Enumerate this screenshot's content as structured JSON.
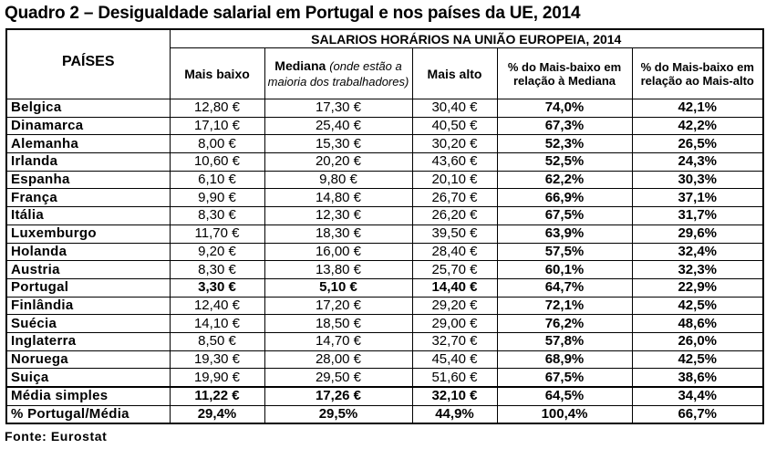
{
  "title": "Quadro 2 – Desigualdade salarial em Portugal e nos países da UE, 2014",
  "table": {
    "group_header": "SALARIOS HORÁRIOS NA UNIÃO EUROPEIA, 2014",
    "col_paises": "PAÍSES",
    "col_baixo": "Mais baixo",
    "col_mediana": "Mediana",
    "col_mediana_note": "(onde estão a maioria dos trabalhadores)",
    "col_alto": "Mais alto",
    "col_pct_mediana": "% do Mais-baixo em relação à Mediana",
    "col_pct_alto": "% do Mais-baixo em relação ao Mais-alto",
    "rows": [
      {
        "pais": "Belgica",
        "baixo": "12,80 €",
        "mediana": "17,30 €",
        "alto": "30,40 €",
        "pct_med": "74,0%",
        "pct_alto": "42,1%"
      },
      {
        "pais": "Dinamarca",
        "baixo": "17,10 €",
        "mediana": "25,40 €",
        "alto": "40,50 €",
        "pct_med": "67,3%",
        "pct_alto": "42,2%"
      },
      {
        "pais": "Alemanha",
        "baixo": "8,00 €",
        "mediana": "15,30 €",
        "alto": "30,20 €",
        "pct_med": "52,3%",
        "pct_alto": "26,5%"
      },
      {
        "pais": "Irlanda",
        "baixo": "10,60 €",
        "mediana": "20,20 €",
        "alto": "43,60 €",
        "pct_med": "52,5%",
        "pct_alto": "24,3%"
      },
      {
        "pais": "Espanha",
        "baixo": "6,10 €",
        "mediana": "9,80 €",
        "alto": "20,10 €",
        "pct_med": "62,2%",
        "pct_alto": "30,3%"
      },
      {
        "pais": "França",
        "baixo": "9,90 €",
        "mediana": "14,80 €",
        "alto": "26,70 €",
        "pct_med": "66,9%",
        "pct_alto": "37,1%"
      },
      {
        "pais": "Itália",
        "baixo": "8,30 €",
        "mediana": "12,30 €",
        "alto": "26,20 €",
        "pct_med": "67,5%",
        "pct_alto": "31,7%"
      },
      {
        "pais": "Luxemburgo",
        "baixo": "11,70 €",
        "mediana": "18,30 €",
        "alto": "39,50 €",
        "pct_med": "63,9%",
        "pct_alto": "29,6%"
      },
      {
        "pais": "Holanda",
        "baixo": "9,20 €",
        "mediana": "16,00 €",
        "alto": "28,40 €",
        "pct_med": "57,5%",
        "pct_alto": "32,4%"
      },
      {
        "pais": "Austria",
        "baixo": "8,30 €",
        "mediana": "13,80 €",
        "alto": "25,70 €",
        "pct_med": "60,1%",
        "pct_alto": "32,3%"
      },
      {
        "pais": "Portugal",
        "baixo": "3,30 €",
        "mediana": "5,10 €",
        "alto": "14,40 €",
        "pct_med": "64,7%",
        "pct_alto": "22,9%",
        "bold": true
      },
      {
        "pais": "Finlândia",
        "baixo": "12,40 €",
        "mediana": "17,20 €",
        "alto": "29,20 €",
        "pct_med": "72,1%",
        "pct_alto": "42,5%"
      },
      {
        "pais": "Suécia",
        "baixo": "14,10 €",
        "mediana": "18,50 €",
        "alto": "29,00 €",
        "pct_med": "76,2%",
        "pct_alto": "48,6%"
      },
      {
        "pais": "Inglaterra",
        "baixo": "8,50 €",
        "mediana": "14,70 €",
        "alto": "32,70 €",
        "pct_med": "57,8%",
        "pct_alto": "26,0%"
      },
      {
        "pais": "Noruega",
        "baixo": "19,30 €",
        "mediana": "28,00 €",
        "alto": "45,40 €",
        "pct_med": "68,9%",
        "pct_alto": "42,5%"
      },
      {
        "pais": "Suiça",
        "baixo": "19,90 €",
        "mediana": "29,50 €",
        "alto": "51,60 €",
        "pct_med": "67,5%",
        "pct_alto": "38,6%"
      },
      {
        "pais": "Média simples",
        "baixo": "11,22 €",
        "mediana": "17,26 €",
        "alto": "32,10 €",
        "pct_med": "64,5%",
        "pct_alto": "34,4%",
        "bold": true,
        "thick": true
      },
      {
        "pais": "% Portugal/Média",
        "baixo": "29,4%",
        "mediana": "29,5%",
        "alto": "44,9%",
        "pct_med": "100,4%",
        "pct_alto": "66,7%",
        "bold": true
      }
    ]
  },
  "footer": "Fonte:  Eurostat"
}
